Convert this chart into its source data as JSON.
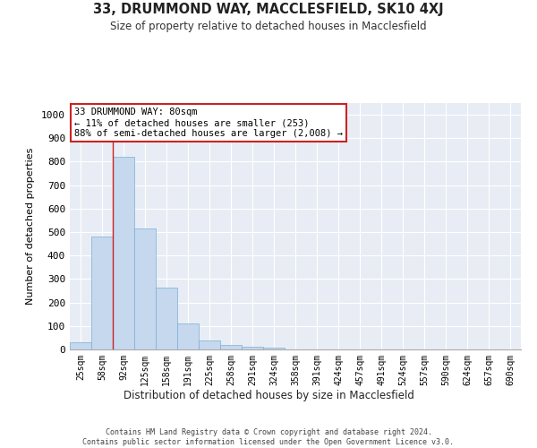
{
  "title": "33, DRUMMOND WAY, MACCLESFIELD, SK10 4XJ",
  "subtitle": "Size of property relative to detached houses in Macclesfield",
  "xlabel": "Distribution of detached houses by size in Macclesfield",
  "ylabel": "Number of detached properties",
  "categories": [
    "25sqm",
    "58sqm",
    "92sqm",
    "125sqm",
    "158sqm",
    "191sqm",
    "225sqm",
    "258sqm",
    "291sqm",
    "324sqm",
    "358sqm",
    "391sqm",
    "424sqm",
    "457sqm",
    "491sqm",
    "524sqm",
    "557sqm",
    "590sqm",
    "624sqm",
    "657sqm",
    "690sqm"
  ],
  "values": [
    30,
    480,
    820,
    515,
    263,
    110,
    38,
    20,
    12,
    8,
    0,
    0,
    0,
    0,
    0,
    0,
    0,
    0,
    0,
    0,
    0
  ],
  "bar_color": "#c5d8ee",
  "bar_edge_color": "#7aafd4",
  "background_color": "#e8edf5",
  "grid_color": "#ffffff",
  "vline_color": "#cc2222",
  "annotation_text": "33 DRUMMOND WAY: 80sqm\n← 11% of detached houses are smaller (253)\n88% of semi-detached houses are larger (2,008) →",
  "annotation_box_color": "#ffffff",
  "annotation_box_edge_color": "#cc2222",
  "ylim": [
    0,
    1050
  ],
  "yticks": [
    0,
    100,
    200,
    300,
    400,
    500,
    600,
    700,
    800,
    900,
    1000
  ],
  "footer_line1": "Contains HM Land Registry data © Crown copyright and database right 2024.",
  "footer_line2": "Contains public sector information licensed under the Open Government Licence v3.0."
}
